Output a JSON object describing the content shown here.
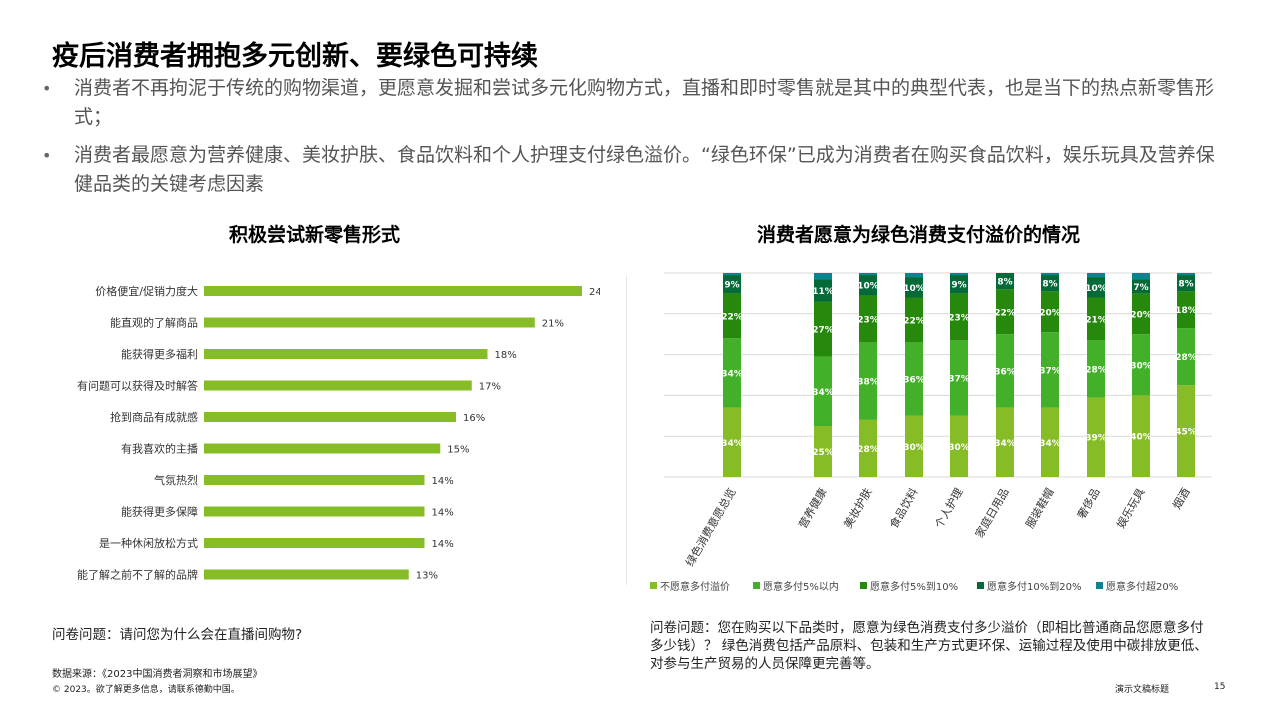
{
  "title": "疫后消费者拥抱多元创新、要绿色可持续",
  "bullets": [
    "消费者不再拘泥于传统的购物渠道，更愿意发掘和尝试多元化购物方式，直播和即时零售就是其中的典型代表，也是当下的热点新零售形式；",
    "消费者最愿意为营养健康、美妆护肤、食品饮料和个人护理支付绿色溢价。“绿色环保”已成为消费者在购买食品饮料，娱乐玩具及营养保健品类的关键考虑因素"
  ],
  "bullet_symbol": "•",
  "chart_data": [
    {
      "type": "bar",
      "orientation": "horizontal",
      "title": "积极尝试新零售形式",
      "categories": [
        "价格便宜/促销力度大",
        "能直观的了解商品",
        "能获得更多福利",
        "有问题可以获得及时解答",
        "抢到商品有成就感",
        "有我喜欢的主播",
        "气氛热烈",
        "能获得更多保障",
        "是一种休闲放松方式",
        "能了解之前不了解的品牌"
      ],
      "values": [
        24,
        21,
        18,
        17,
        16,
        15,
        14,
        14,
        14,
        13
      ],
      "value_labels": [
        "24%",
        "21%",
        "18%",
        "17%",
        "16%",
        "15%",
        "14%",
        "14%",
        "14%",
        "13%"
      ],
      "unit": "%",
      "xlim": [
        0,
        30
      ],
      "color": "#86BC25",
      "grid": false
    },
    {
      "type": "bar",
      "orientation": "vertical",
      "stacked": true,
      "title": "消费者愿意为绿色消费支付溢价的情况",
      "categories": [
        "绿色消费意愿总览",
        "营养健康",
        "美妆护肤",
        "食品饮料",
        "个人护理",
        "家庭日用品",
        "服装鞋帽",
        "奢侈品",
        "娱乐玩具",
        "烟酒"
      ],
      "series": [
        {
          "name": "不愿意多付溢价",
          "color": "#86BC25",
          "values": [
            34,
            25,
            28,
            30,
            30,
            34,
            34,
            39,
            40,
            45
          ]
        },
        {
          "name": "愿意多付5%以内",
          "color": "#43B02A",
          "values": [
            34,
            34,
            38,
            36,
            37,
            36,
            37,
            28,
            30,
            28
          ]
        },
        {
          "name": "愿意多付5%到10%",
          "color": "#26890D",
          "values": [
            22,
            27,
            23,
            22,
            23,
            22,
            20,
            21,
            20,
            18
          ]
        },
        {
          "name": "愿意多付10%到20%",
          "color": "#046A38",
          "values": [
            9,
            11,
            10,
            10,
            9,
            8,
            8,
            10,
            7,
            8
          ]
        },
        {
          "name": "愿意多付超20%",
          "color": "#0D8390",
          "values": [
            1,
            3,
            1,
            2,
            1,
            0,
            1,
            2,
            3,
            1
          ]
        }
      ],
      "ylim": [
        0,
        100
      ],
      "unit": "%",
      "grid": true,
      "legend": "bottom"
    }
  ],
  "questions": {
    "left": "问卷问题：请问您为什么会在直播间购物?",
    "right": "问卷问题：您在购买以下品类时，愿意为绿色消费支付多少溢价（即相比普通商品您愿意多付多少钱）？ 绿色消费包括产品原料、包装和生产方式更环保、运输过程及使用中碳排放更低、对参与生产贸易的人员保障更完善等。"
  },
  "footer": {
    "source": "数据来源：《2023中国消费者洞察和市场展望》",
    "copyright": "© 2023。欲了解更多信息，请联系德勤中国。",
    "doc_title": "演示文稿标题",
    "page": "15"
  }
}
